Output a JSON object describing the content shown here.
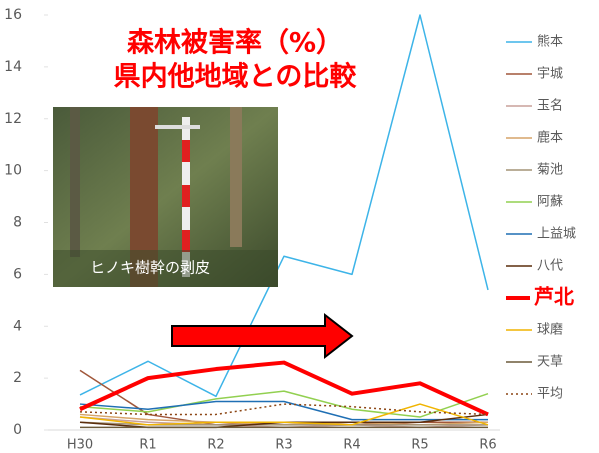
{
  "chart_data": {
    "type": "line",
    "title": "森林被害率（%）",
    "subtitle": "県内他地域との比較",
    "annotations": [
      "ヒノキ樹幹の剥皮"
    ],
    "categories": [
      "H30",
      "R1",
      "R2",
      "R3",
      "R4",
      "R5",
      "R6"
    ],
    "ylim": [
      0,
      16
    ],
    "yticks": [
      0,
      2,
      4,
      6,
      8,
      10,
      12,
      14,
      16
    ],
    "series": [
      {
        "name": "熊本",
        "color": "#3db4e8",
        "width": 1.5,
        "values": [
          1.35,
          2.65,
          1.3,
          6.7,
          6.0,
          16,
          5.4
        ]
      },
      {
        "name": "宇城",
        "color": "#a0573a",
        "width": 1.5,
        "values": [
          2.3,
          0.6,
          0.2,
          0.3,
          0.2,
          0.3,
          0.3
        ]
      },
      {
        "name": "玉名",
        "color": "#c9a09a",
        "width": 1.5,
        "values": [
          0.5,
          0.3,
          0.2,
          0.1,
          0.2,
          0.1,
          0.2
        ]
      },
      {
        "name": "鹿本",
        "color": "#d6a468",
        "width": 1.5,
        "values": [
          0.6,
          0.4,
          0.3,
          0.2,
          0.3,
          0.2,
          0.3
        ]
      },
      {
        "name": "菊池",
        "color": "#a39377",
        "width": 1.5,
        "values": [
          0.3,
          0.2,
          0.2,
          0.2,
          0.2,
          0.2,
          0.2
        ]
      },
      {
        "name": "阿蘇",
        "color": "#92d050",
        "width": 1.5,
        "values": [
          0.9,
          0.7,
          1.2,
          1.5,
          0.8,
          0.5,
          1.4
        ]
      },
      {
        "name": "上益城",
        "color": "#1f6fb4",
        "width": 1.5,
        "values": [
          1.0,
          0.8,
          1.1,
          1.1,
          0.4,
          0.4,
          0.4
        ]
      },
      {
        "name": "八代",
        "color": "#5a2d0c",
        "width": 1.5,
        "values": [
          0.3,
          0.1,
          0.1,
          0.3,
          0.3,
          0.3,
          0.6
        ]
      },
      {
        "name": "芦北",
        "color": "#ff0000",
        "width": 4,
        "values": [
          0.8,
          2.0,
          2.35,
          2.6,
          1.4,
          1.8,
          0.6
        ]
      },
      {
        "name": "球磨",
        "color": "#f0b400",
        "width": 1.5,
        "values": [
          0.5,
          0.2,
          0.3,
          0.3,
          0.2,
          1.0,
          0.2
        ]
      },
      {
        "name": "天草",
        "color": "#6b5a3a",
        "width": 1.5,
        "values": [
          0.1,
          0.1,
          0.1,
          0.1,
          0.1,
          0.1,
          0.1
        ]
      },
      {
        "name": "平均",
        "color": "#8b4513",
        "width": 1.5,
        "dash": "dotted",
        "values": [
          0.7,
          0.6,
          0.6,
          1.0,
          0.9,
          0.7,
          0.6
        ]
      }
    ]
  }
}
